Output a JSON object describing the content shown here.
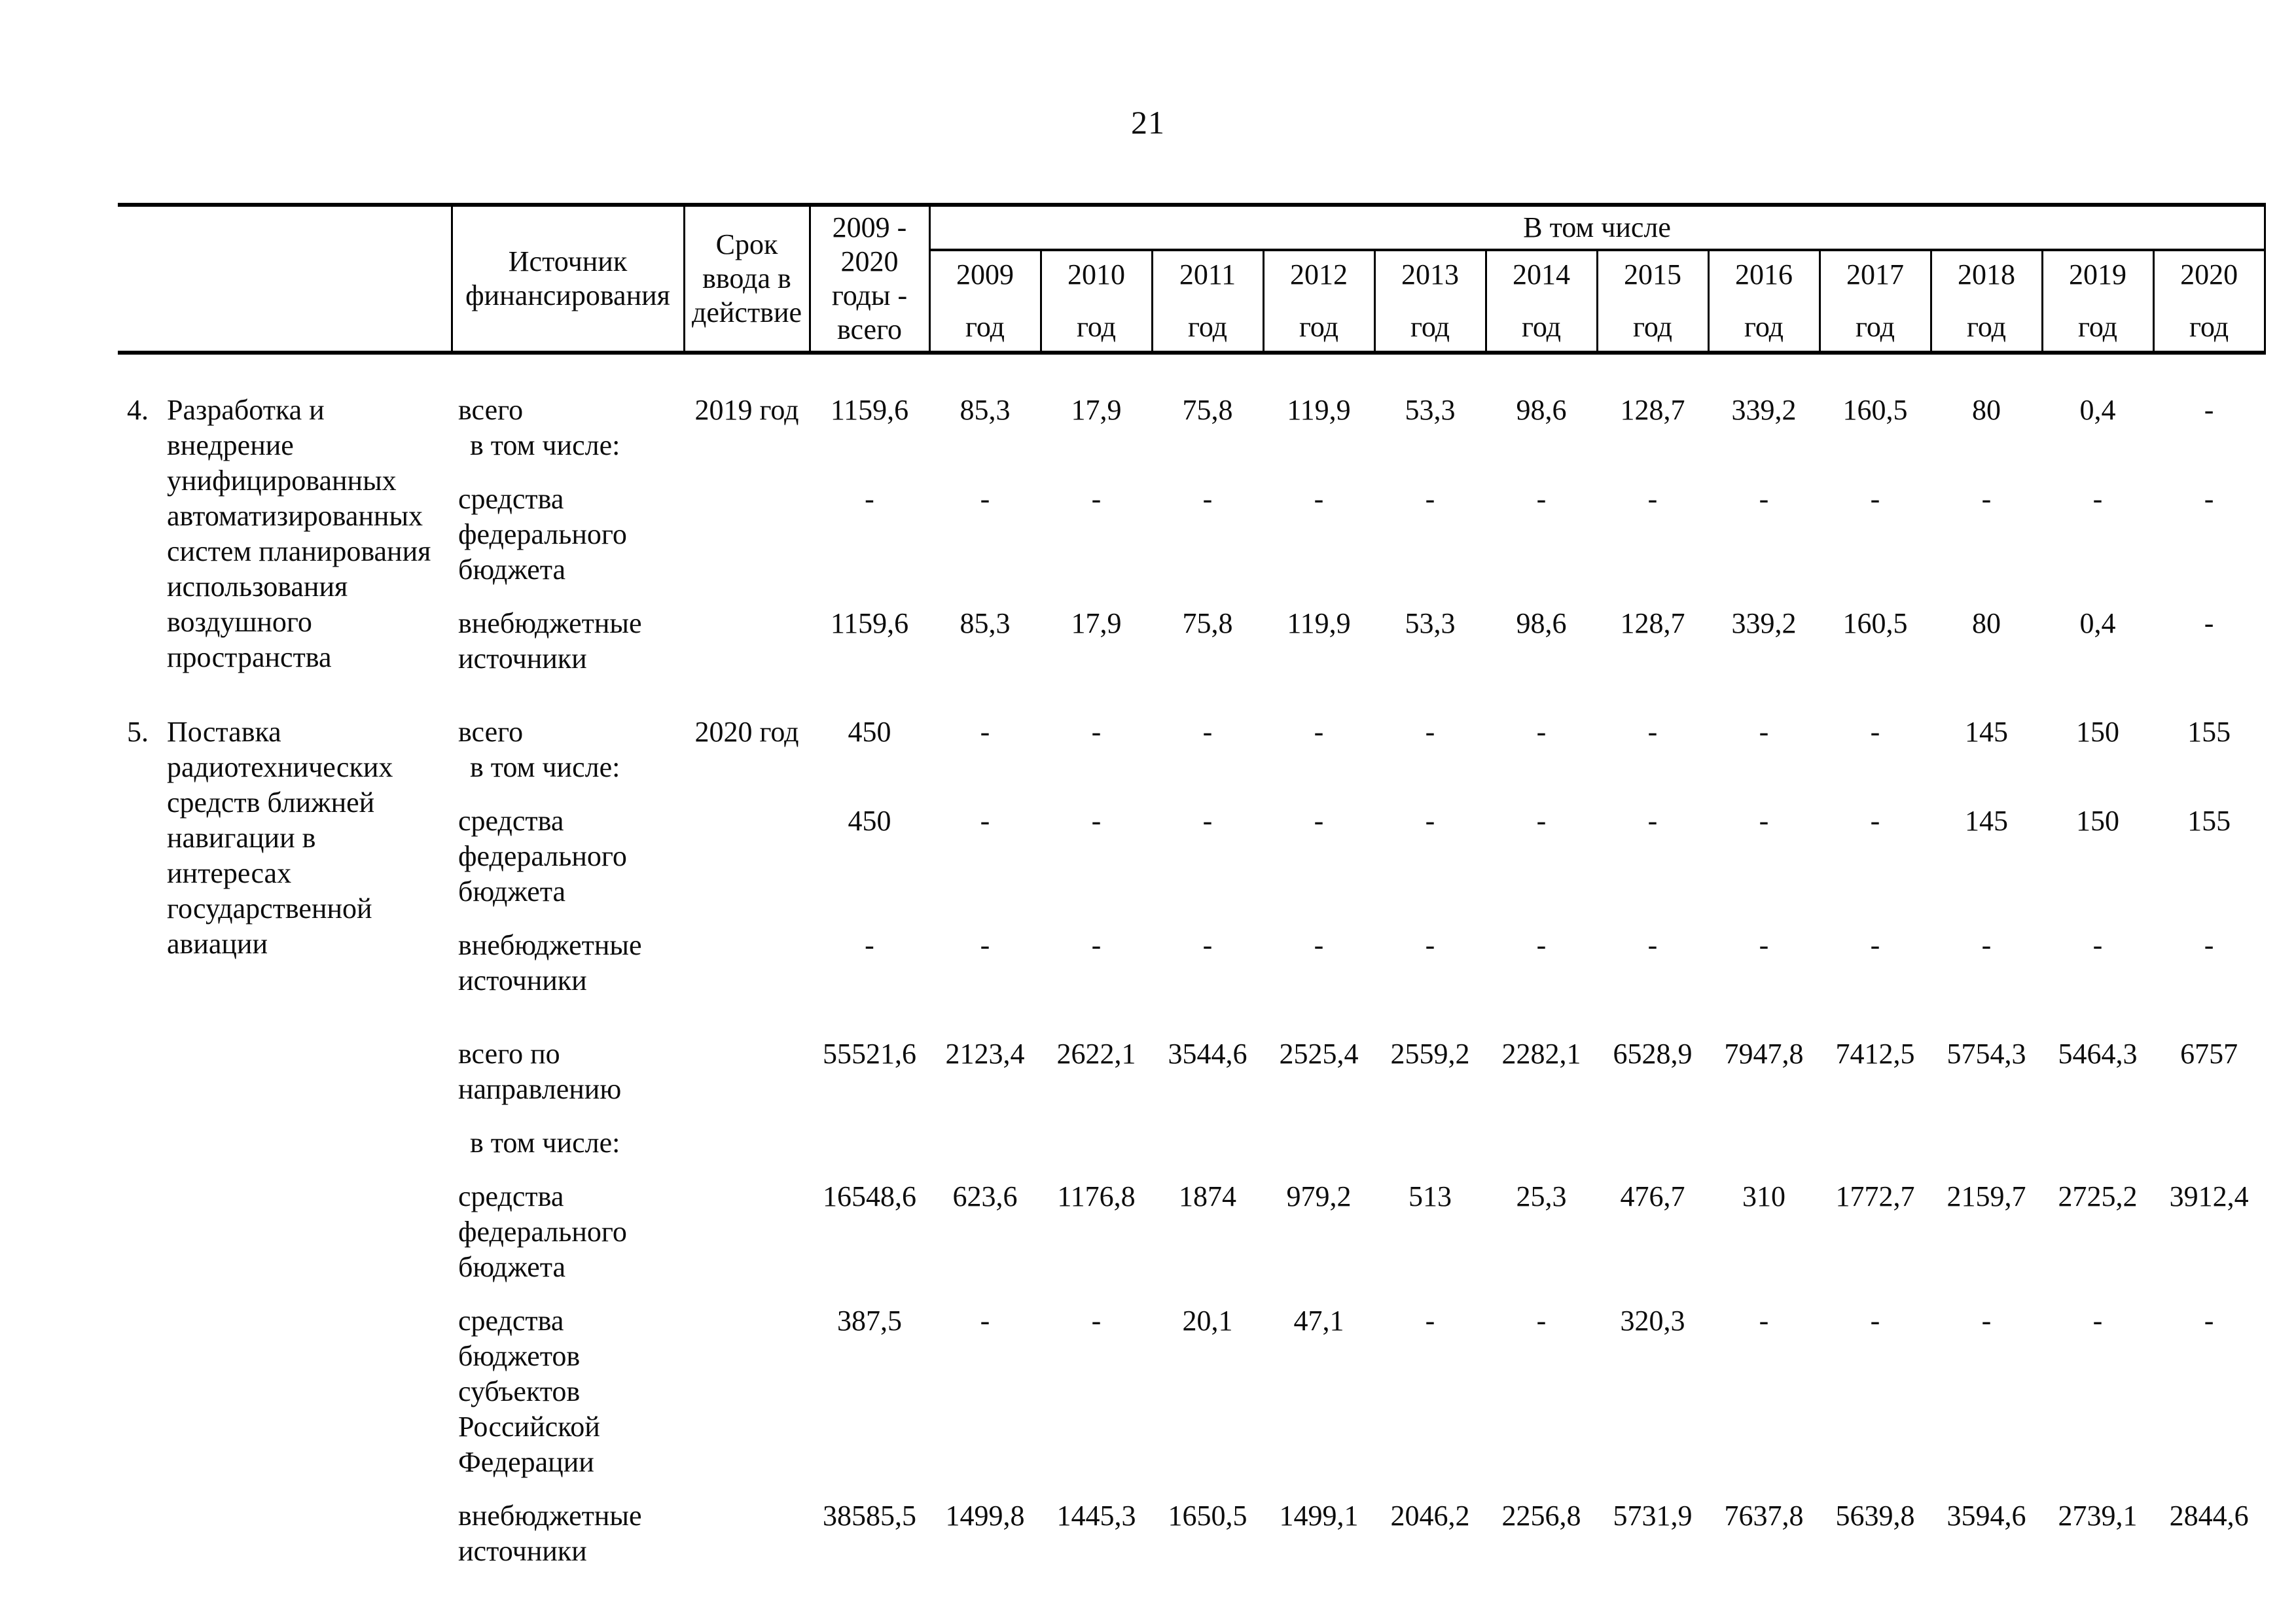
{
  "page_number": "21",
  "table": {
    "header": {
      "source": "Источник\nфинансирования",
      "term": "Срок\nввода в\nдействие",
      "total": "2009 -\n2020\nгоды -\nвсего",
      "group": "В том числе",
      "years": [
        "2009",
        "2010",
        "2011",
        "2012",
        "2013",
        "2014",
        "2015",
        "2016",
        "2017",
        "2018",
        "2019",
        "2020"
      ],
      "year_unit": "год"
    },
    "rows": [
      {
        "num": "4.",
        "desc": "Разработка и\nвнедрение\nунифицированных\nавтоматизированных\nсистем планирования\nиспользования\nвоздушного\nпространства",
        "desc_span": 3,
        "section_start": true,
        "source": [
          "всего",
          "в том числе:"
        ],
        "term": "2019 год",
        "total": "1159,6",
        "values": [
          "85,3",
          "17,9",
          "75,8",
          "119,9",
          "53,3",
          "98,6",
          "128,7",
          "339,2",
          "160,5",
          "80",
          "0,4",
          "-"
        ]
      },
      {
        "source": [
          "средства",
          "федерального",
          "бюджета"
        ],
        "term": "",
        "total": "-",
        "values": [
          "-",
          "-",
          "-",
          "-",
          "-",
          "-",
          "-",
          "-",
          "-",
          "-",
          "-",
          "-"
        ]
      },
      {
        "source": [
          "внебюджетные",
          "источники"
        ],
        "term": "",
        "total": "1159,6",
        "values": [
          "85,3",
          "17,9",
          "75,8",
          "119,9",
          "53,3",
          "98,6",
          "128,7",
          "339,2",
          "160,5",
          "80",
          "0,4",
          "-"
        ]
      },
      {
        "num": "5.",
        "desc": "Поставка\nрадиотехнических\nсредств ближней\nнавигации в интересах\nгосударственной\nавиации",
        "desc_span": 3,
        "section_start": true,
        "source": [
          "всего",
          "в том числе:"
        ],
        "term": "2020 год",
        "total": "450",
        "values": [
          "-",
          "-",
          "-",
          "-",
          "-",
          "-",
          "-",
          "-",
          "-",
          "145",
          "150",
          "155"
        ]
      },
      {
        "source": [
          "средства",
          "федерального",
          "бюджета"
        ],
        "term": "",
        "total": "450",
        "values": [
          "-",
          "-",
          "-",
          "-",
          "-",
          "-",
          "-",
          "-",
          "-",
          "145",
          "150",
          "155"
        ]
      },
      {
        "source": [
          "внебюджетные",
          "источники"
        ],
        "term": "",
        "total": "-",
        "values": [
          "-",
          "-",
          "-",
          "-",
          "-",
          "-",
          "-",
          "-",
          "-",
          "-",
          "-",
          "-"
        ]
      },
      {
        "section_start": true,
        "source": [
          "всего по",
          "направлению"
        ],
        "term": "",
        "total": "55521,6",
        "values": [
          "2123,4",
          "2622,1",
          "3544,6",
          "2525,4",
          "2559,2",
          "2282,1",
          "6528,9",
          "7947,8",
          "7412,5",
          "5754,3",
          "5464,3",
          "6757"
        ]
      },
      {
        "source": [
          "в том числе:"
        ],
        "term": "",
        "total": "",
        "values": [
          "",
          "",
          "",
          "",
          "",
          "",
          "",
          "",
          "",
          "",
          "",
          ""
        ]
      },
      {
        "source": [
          "средства",
          "федерального",
          "бюджета"
        ],
        "term": "",
        "total": "16548,6",
        "values": [
          "623,6",
          "1176,8",
          "1874",
          "979,2",
          "513",
          "25,3",
          "476,7",
          "310",
          "1772,7",
          "2159,7",
          "2725,2",
          "3912,4"
        ]
      },
      {
        "source": [
          "средства",
          "бюджетов",
          "субъектов",
          "Российской",
          "Федерации"
        ],
        "term": "",
        "total": "387,5",
        "values": [
          "-",
          "-",
          "20,1",
          "47,1",
          "-",
          "-",
          "320,3",
          "-",
          "-",
          "-",
          "-",
          "-"
        ]
      },
      {
        "source": [
          "внебюджетные",
          "источники"
        ],
        "term": "",
        "total": "38585,5",
        "values": [
          "1499,8",
          "1445,3",
          "1650,5",
          "1499,1",
          "2046,2",
          "2256,8",
          "5731,9",
          "7637,8",
          "5639,8",
          "3594,6",
          "2739,1",
          "2844,6"
        ]
      }
    ]
  }
}
